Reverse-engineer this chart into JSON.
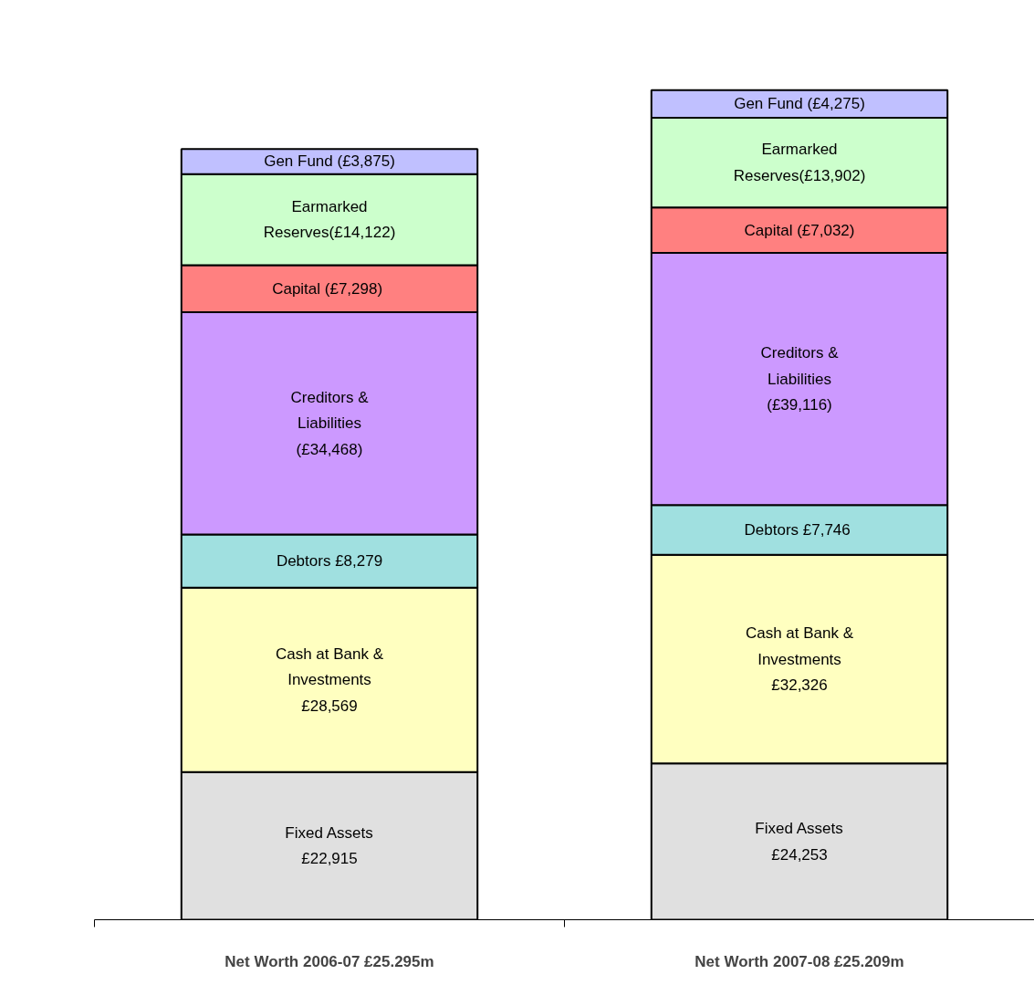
{
  "chart_data": {
    "type": "bar",
    "stacked": true,
    "categories": [
      "Net Worth 2006-07 £25.295m",
      "Net Worth 2007-08 £25.209m"
    ],
    "series": [
      {
        "color": "#e0e0e0",
        "values": [
          22915,
          24253
        ],
        "value_labels": [
          "Fixed Assets\n£22,915",
          "Fixed Assets\n£24,253"
        ]
      },
      {
        "color": "#ffffc0",
        "values": [
          28569,
          32326
        ],
        "value_labels": [
          "Cash at Bank &\nInvestments\n£28,569",
          "Cash at Bank &\nInvestments\n£32,326"
        ]
      },
      {
        "color": "#a0e0e0",
        "values": [
          8279,
          7746
        ],
        "value_labels": [
          "Debtors £8,279",
          "Debtors  £7,746"
        ]
      },
      {
        "color": "#cc99ff",
        "values": [
          34468,
          39116
        ],
        "value_labels": [
          "Creditors &\nLiabilities\n(£34,468)",
          "Creditors &\nLiabilities\n(£39,116)"
        ]
      },
      {
        "color": "#ff8080",
        "values": [
          7298,
          7032
        ],
        "value_labels": [
          "Capital  (£7,298)",
          "Capital (£7,032)"
        ]
      },
      {
        "color": "#ccffcc",
        "values": [
          14122,
          13902
        ],
        "value_labels": [
          "Earmarked\nReserves(£14,122)",
          "Earmarked\nReserves(£13,902)"
        ]
      },
      {
        "color": "#c0c0ff",
        "values": [
          3875,
          4275
        ],
        "value_labels": [
          "Gen Fund (£3,875)",
          "Gen Fund (£4,275)"
        ]
      }
    ]
  }
}
